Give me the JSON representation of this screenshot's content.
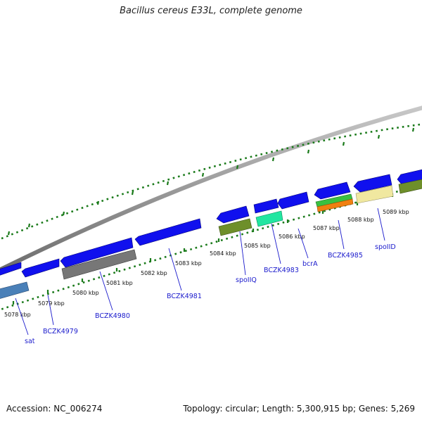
{
  "title": "Bacillus cereus E33L, complete genome",
  "footer": {
    "accession": "Accession: NC_006274",
    "stats": "Topology: circular; Length: 5,300,915 bp; Genes: 5,269"
  },
  "ticks": [
    "5078 kbp",
    "5079 kbp",
    "5080 kbp",
    "5081 kbp",
    "5082 kbp",
    "5083 kbp",
    "5084 kbp",
    "5085 kbp",
    "5086 kbp",
    "5087 kbp",
    "5088 kbp",
    "5089 kbp"
  ],
  "genes": [
    "sat",
    "BCZK4979",
    "BCZK4980",
    "BCZK4981",
    "spoIIQ",
    "BCZK4983",
    "bcrA",
    "BCZK4985",
    "spoIID"
  ],
  "colors": {
    "cds": "#1010ee",
    "backbone": "#8a8a8a",
    "tick": "#1a7a1a",
    "label": "#1a1acc"
  }
}
